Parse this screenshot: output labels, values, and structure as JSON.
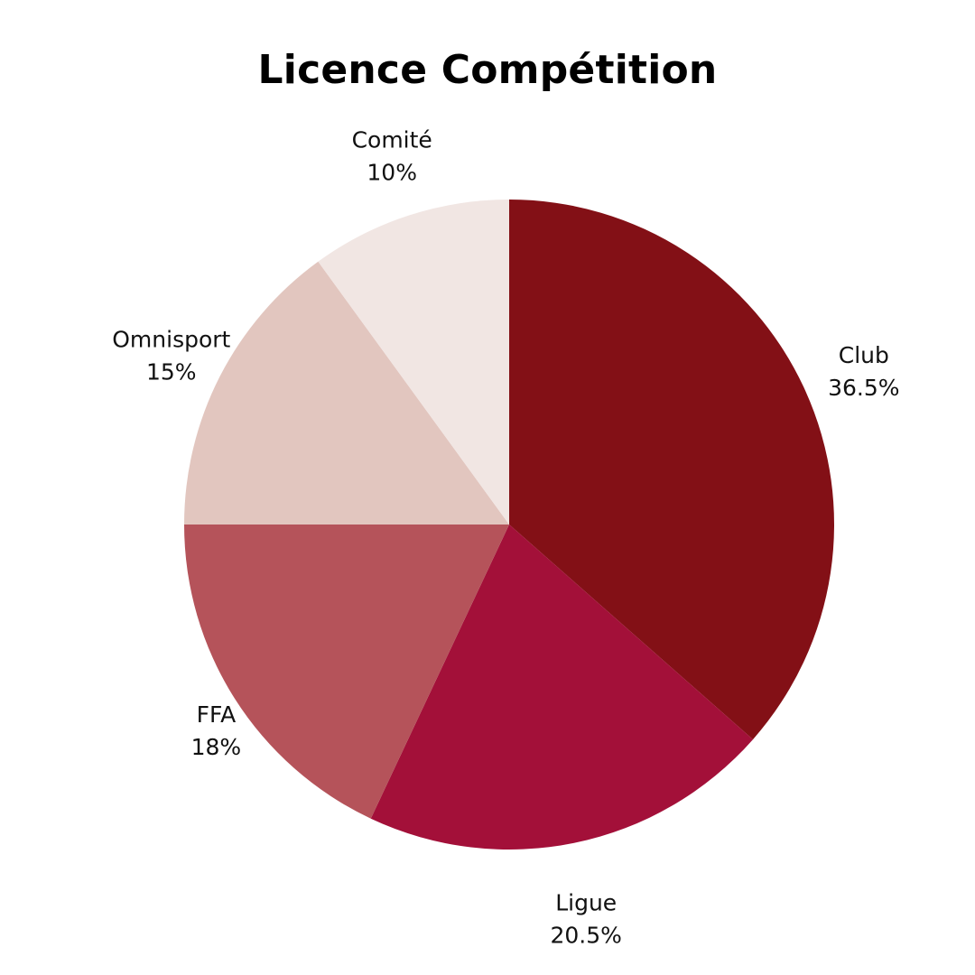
{
  "chart_data": {
    "type": "pie",
    "title": "Licence Compétition",
    "start": "top, clockwise",
    "slices": [
      {
        "label": "Club",
        "value": 36.5,
        "value_label": "36.5%",
        "color": "#831016"
      },
      {
        "label": "Ligue",
        "value": 20.5,
        "value_label": "20.5%",
        "color": "#a31039"
      },
      {
        "label": "FFA",
        "value": 18,
        "value_label": "18%",
        "color": "#b5535a"
      },
      {
        "label": "Omnisport",
        "value": 15,
        "value_label": "15%",
        "color": "#e2c6bf"
      },
      {
        "label": "Comité",
        "value": 10,
        "value_label": "10%",
        "color": "#f1e6e3"
      }
    ]
  }
}
